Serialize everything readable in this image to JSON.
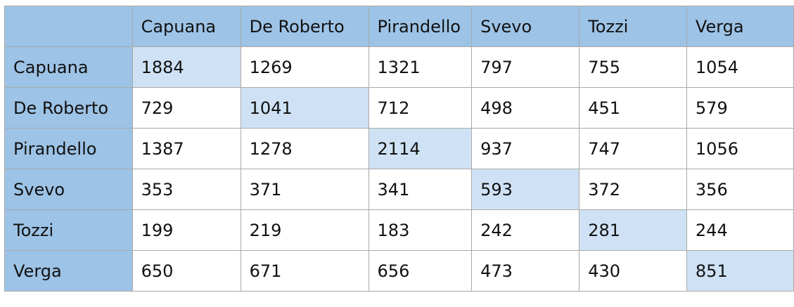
{
  "table": {
    "columns": [
      "Capuana",
      "De Roberto",
      "Pirandello",
      "Svevo",
      "Tozzi",
      "Verga"
    ],
    "rows": [
      {
        "label": "Capuana",
        "values": [
          "1884",
          "1269",
          "1321",
          "797",
          "755",
          "1054"
        ]
      },
      {
        "label": "De Roberto",
        "values": [
          "729",
          "1041",
          "712",
          "498",
          "451",
          "579"
        ]
      },
      {
        "label": "Pirandello",
        "values": [
          "1387",
          "1278",
          "2114",
          "937",
          "747",
          "1056"
        ]
      },
      {
        "label": "Svevo",
        "values": [
          "353",
          "371",
          "341",
          "593",
          "372",
          "356"
        ]
      },
      {
        "label": "Tozzi",
        "values": [
          "199",
          "219",
          "183",
          "242",
          "281",
          "244"
        ]
      },
      {
        "label": "Verga",
        "values": [
          "650",
          "671",
          "656",
          "473",
          "430",
          "851"
        ]
      }
    ],
    "colors": {
      "header_fill": "#9dc3e6",
      "diagonal_fill": "#cfe2f5",
      "cell_fill": "#ffffff",
      "border": "#a9a9a9"
    }
  }
}
